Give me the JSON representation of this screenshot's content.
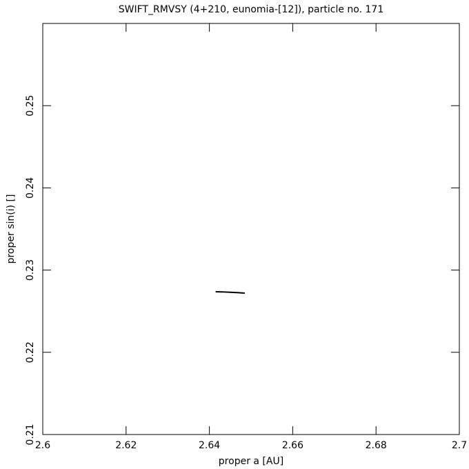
{
  "chart_data": {
    "type": "line",
    "title": "SWIFT_RMVSY (4+210, eunomia-[12]), particle no. 171",
    "xlabel": "proper a [AU]",
    "ylabel": "proper sin(i) []",
    "series": [
      {
        "color": "#000000",
        "x": [
          2.6415,
          2.643,
          2.645,
          2.647,
          2.6485
        ],
        "values": [
          0.22737,
          0.22735,
          0.2273,
          0.22725,
          0.2272
        ]
      }
    ],
    "xlim": [
      2.6,
      2.7
    ],
    "xticks": [
      2.6,
      2.62,
      2.64,
      2.66,
      2.68,
      2.7
    ],
    "ylim": [
      0.21,
      0.26
    ],
    "yticks": [
      0.21,
      0.22,
      0.23,
      0.24,
      0.25
    ],
    "grid": false
  }
}
